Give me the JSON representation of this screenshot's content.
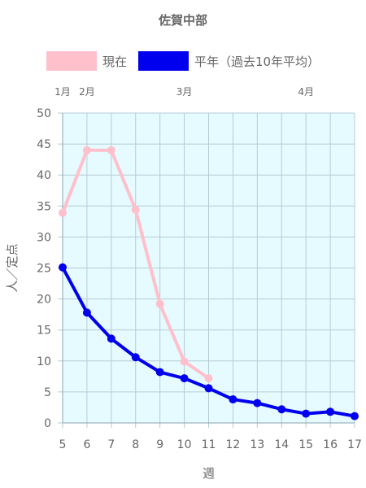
{
  "chart_data": {
    "type": "line",
    "title": "佐賀中部",
    "xlabel": "週",
    "ylabel": "人／定点",
    "x": [
      5,
      6,
      7,
      8,
      9,
      10,
      11,
      12,
      13,
      14,
      15,
      16,
      17
    ],
    "ylim": [
      0,
      50
    ],
    "yticks": [
      0,
      5,
      10,
      15,
      20,
      25,
      30,
      35,
      40,
      45,
      50
    ],
    "grid": true,
    "legend_position": "top",
    "month_labels": [
      {
        "label": "1月",
        "x": 5
      },
      {
        "label": "2月",
        "x": 6
      },
      {
        "label": "3月",
        "x": 10
      },
      {
        "label": "4月",
        "x": 15
      }
    ],
    "plot_background": "#e6fbff",
    "series": [
      {
        "name": "現在",
        "color": "#ffc0cb",
        "values": [
          33.9,
          44.0,
          44.0,
          34.4,
          19.2,
          9.9,
          7.2,
          null,
          null,
          null,
          null,
          null,
          null
        ]
      },
      {
        "name": "平年（過去10年平均）",
        "color": "#0000ee",
        "values": [
          25.1,
          17.8,
          13.6,
          10.6,
          8.2,
          7.2,
          5.6,
          3.8,
          3.2,
          2.2,
          1.5,
          1.8,
          1.1
        ]
      }
    ]
  }
}
